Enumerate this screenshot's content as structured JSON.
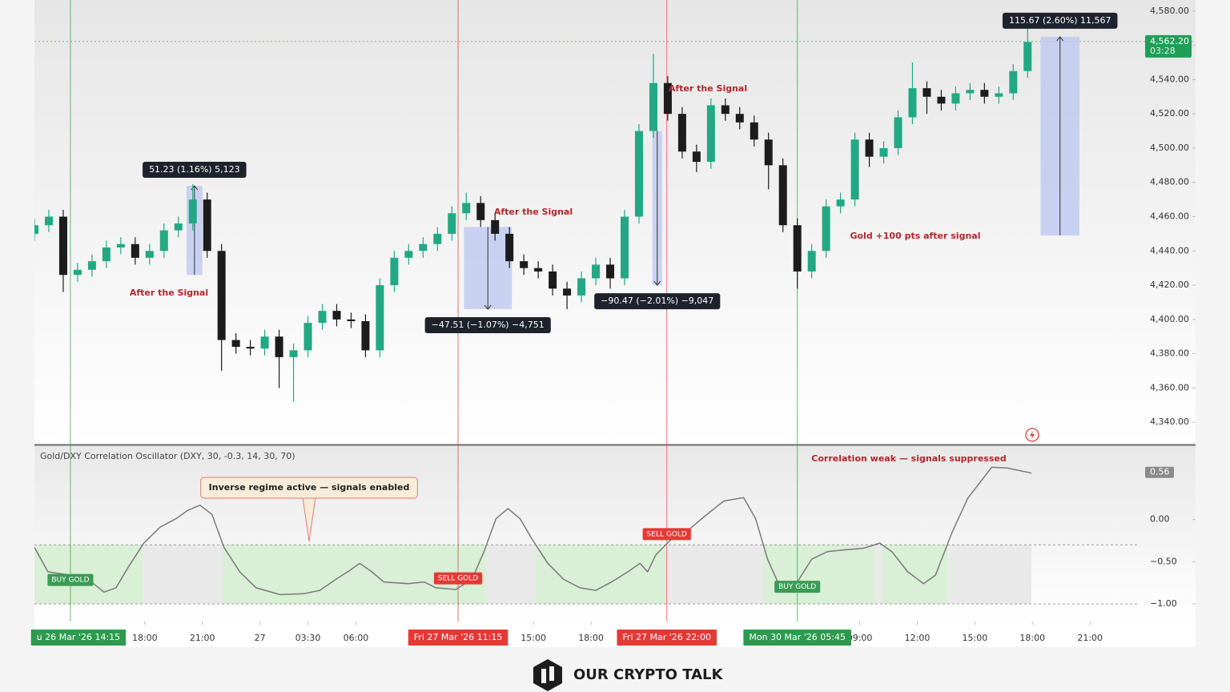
{
  "chart_data": [
    {
      "type": "candlestick",
      "xlim": [
        0,
        242
      ],
      "ylim": [
        4327,
        4586
      ],
      "xticks": [
        {
          "value": 23,
          "label": "18:00"
        },
        {
          "value": 35,
          "label": "21:00"
        },
        {
          "value": 47,
          "label": "27"
        },
        {
          "value": 57,
          "label": "03:30"
        },
        {
          "value": 67,
          "label": "06:00"
        },
        {
          "value": 104,
          "label": "15:00"
        },
        {
          "value": 116,
          "label": "18:00"
        },
        {
          "value": 172,
          "label": "09:00"
        },
        {
          "value": 184,
          "label": "12:00"
        },
        {
          "value": 196,
          "label": "15:00"
        },
        {
          "value": 208,
          "label": "18:00"
        },
        {
          "value": 220,
          "label": "21:00"
        }
      ],
      "yticks": [
        {
          "value": 4580,
          "label": "4,580.00"
        },
        {
          "value": 4560,
          "label": "4,560.00"
        },
        {
          "value": 4540,
          "label": "4,540.00"
        },
        {
          "value": 4520,
          "label": "4,520.00"
        },
        {
          "value": 4500,
          "label": "4,500.00"
        },
        {
          "value": 4480,
          "label": "4,480.00"
        },
        {
          "value": 4460,
          "label": "4,460.00"
        },
        {
          "value": 4440,
          "label": "4,440.00"
        },
        {
          "value": 4420,
          "label": "4,420.00"
        },
        {
          "value": 4400,
          "label": "4,400.00"
        },
        {
          "value": 4380,
          "label": "4,380.00"
        },
        {
          "value": 4360,
          "label": "4,360.00"
        },
        {
          "value": 4340,
          "label": "4,340.00"
        }
      ],
      "up_color": "#22a884",
      "down_color": "#1c1c1c",
      "x": [
        0,
        3,
        6,
        9,
        12,
        15,
        18,
        21,
        24,
        27,
        30,
        33,
        36,
        39,
        42,
        45,
        48,
        51,
        54,
        57,
        60,
        63,
        66,
        69,
        72,
        75,
        78,
        81,
        84,
        87,
        90,
        93,
        96,
        99,
        102,
        105,
        108,
        111,
        114,
        117,
        120,
        123,
        126,
        129,
        132,
        135,
        138,
        141,
        144,
        147,
        150,
        153,
        156,
        159,
        162,
        165,
        168,
        171,
        174,
        177,
        180,
        183,
        186,
        189,
        192,
        195,
        198,
        201,
        204,
        207
      ],
      "open": [
        4450,
        4455,
        4460,
        4426,
        4429,
        4434,
        4442,
        4444,
        4436,
        4440,
        4452,
        4456,
        4470,
        4440,
        4388,
        4384,
        4383,
        4390,
        4378,
        4382,
        4398,
        4405,
        4400,
        4399,
        4382,
        4420,
        4436,
        4440,
        4444,
        4450,
        4462,
        4468,
        4458,
        4450,
        4434,
        4430,
        4428,
        4418,
        4414,
        4424,
        4432,
        4424,
        4460,
        4510,
        4538,
        4520,
        4498,
        4492,
        4525,
        4520,
        4515,
        4505,
        4490,
        4455,
        4428,
        4440,
        4466,
        4470,
        4505,
        4495,
        4500,
        4518,
        4535,
        4530,
        4526,
        4532,
        4534,
        4530,
        4532,
        4545
      ],
      "high": [
        4459,
        4464,
        4464,
        4433,
        4438,
        4446,
        4448,
        4448,
        4444,
        4456,
        4460,
        4479,
        4474,
        4444,
        4392,
        4388,
        4394,
        4394,
        4386,
        4402,
        4409,
        4409,
        4404,
        4403,
        4424,
        4440,
        4444,
        4448,
        4454,
        4466,
        4474,
        4472,
        4462,
        4454,
        4438,
        4434,
        4432,
        4422,
        4428,
        4436,
        4436,
        4464,
        4514,
        4555,
        4542,
        4524,
        4502,
        4529,
        4529,
        4524,
        4519,
        4509,
        4494,
        4459,
        4444,
        4470,
        4474,
        4509,
        4509,
        4504,
        4522,
        4550,
        4539,
        4534,
        4536,
        4538,
        4538,
        4536,
        4549,
        4575
      ],
      "low": [
        4446,
        4451,
        4416,
        4422,
        4425,
        4430,
        4438,
        4432,
        4432,
        4436,
        4448,
        4452,
        4436,
        4370,
        4380,
        4379,
        4379,
        4360,
        4352,
        4378,
        4394,
        4396,
        4395,
        4378,
        4378,
        4416,
        4432,
        4436,
        4440,
        4446,
        4458,
        4454,
        4446,
        4430,
        4426,
        4424,
        4414,
        4406,
        4410,
        4420,
        4418,
        4420,
        4456,
        4506,
        4516,
        4494,
        4486,
        4488,
        4516,
        4511,
        4501,
        4476,
        4451,
        4418,
        4424,
        4436,
        4462,
        4466,
        4489,
        4491,
        4496,
        4514,
        4520,
        4522,
        4522,
        4528,
        4526,
        4526,
        4528,
        4541
      ],
      "close": [
        4455,
        4460,
        4426,
        4429,
        4434,
        4442,
        4444,
        4436,
        4440,
        4452,
        4456,
        4470,
        4440,
        4388,
        4384,
        4383,
        4390,
        4378,
        4382,
        4398,
        4405,
        4400,
        4399,
        4382,
        4420,
        4436,
        4440,
        4444,
        4450,
        4462,
        4468,
        4458,
        4450,
        4434,
        4430,
        4428,
        4418,
        4414,
        4424,
        4432,
        4424,
        4460,
        4510,
        4538,
        4520,
        4498,
        4492,
        4525,
        4520,
        4515,
        4505,
        4490,
        4455,
        4428,
        4440,
        4466,
        4470,
        4505,
        4495,
        4500,
        4518,
        4535,
        4530,
        4526,
        4532,
        4534,
        4530,
        4532,
        4545,
        4562
      ],
      "last_price": {
        "value": 4562.2,
        "label": "4,562.20"
      },
      "countdown": "03:28",
      "measures": [
        {
          "x": [
            31.7,
            35
          ],
          "y": [
            4426,
            4478
          ],
          "label": "51.23 (1.16%) 5,123"
        },
        {
          "x": [
            89.5,
            99.5
          ],
          "y": [
            4454,
            4406
          ],
          "label": "−47.51 (−1.07%) −4,751"
        },
        {
          "x": [
            128.8,
            130.8
          ],
          "y": [
            4510,
            4420
          ],
          "label": "−90.47 (−2.01%) −9,047"
        },
        {
          "x": [
            209.7,
            217.8
          ],
          "y": [
            4449,
            4565
          ],
          "label": "115.67 (2.60%) 11,567"
        }
      ],
      "annotations": [
        "After the Signal",
        "After the Signal",
        "After the Signal",
        "Gold +100 pts after signal"
      ],
      "signals": [
        {
          "x": 7.5,
          "time": "u 26 Mar '26  14:15",
          "label": "BUY GOLD",
          "color": "#2e9a4e"
        },
        {
          "x": 88.3,
          "time": "Fri 27 Mar '26  11:15",
          "label": "SELL GOLD",
          "color": "#e53935"
        },
        {
          "x": 131.8,
          "time": "Fri 27 Mar '26  22:00",
          "label": "SELL GOLD",
          "color": "#e53935"
        },
        {
          "x": 159,
          "time": "Mon 30 Mar '26  05:45",
          "label": "BUY GOLD",
          "color": "#2e9a4e"
        }
      ]
    },
    {
      "type": "line",
      "title": "Gold/DXY Correlation Oscillator (DXY, 30, -0.3, 14, 30, 70)",
      "xlim": [
        0,
        242
      ],
      "ylim": [
        -1.2,
        0.88
      ],
      "yticks": [
        {
          "value": 0,
          "label": "0.00"
        },
        {
          "value": -0.5,
          "label": "−0.50"
        },
        {
          "value": -1,
          "label": "−1.00"
        }
      ],
      "threshold": -0.3,
      "floor": -1,
      "color": "#7a7a7a",
      "last_value": 0.56,
      "x": [
        0,
        2.8,
        7.5,
        11.2,
        14.5,
        17,
        19.5,
        22.8,
        26.2,
        29.5,
        32,
        34.5,
        37,
        39.5,
        42.8,
        46.2,
        51.2,
        56.2,
        59.5,
        62.8,
        65.3,
        67.8,
        70.3,
        72.8,
        77.8,
        81.2,
        83.7,
        87.8,
        91.2,
        93.7,
        96.2,
        98.7,
        101.2,
        103.7,
        107,
        110.3,
        113.7,
        117,
        120.3,
        123.7,
        126.2,
        127.8,
        129.5,
        132.8,
        136.2,
        139.5,
        143.7,
        147.8,
        150.3,
        152.8,
        155.3,
        159,
        162,
        165.3,
        168.7,
        172.8,
        176.2,
        178.7,
        182,
        185.3,
        187.8,
        191.2,
        194.5,
        199.5,
        202.8,
        207.8
      ],
      "values": [
        -0.33,
        -0.62,
        -0.66,
        -0.71,
        -0.86,
        -0.81,
        -0.57,
        -0.28,
        -0.09,
        0.01,
        0.11,
        0.17,
        0.06,
        -0.33,
        -0.62,
        -0.81,
        -0.89,
        -0.88,
        -0.84,
        -0.71,
        -0.62,
        -0.52,
        -0.62,
        -0.74,
        -0.76,
        -0.74,
        -0.81,
        -0.83,
        -0.71,
        -0.38,
        0.01,
        0.13,
        0.01,
        -0.23,
        -0.52,
        -0.71,
        -0.81,
        -0.84,
        -0.74,
        -0.62,
        -0.52,
        -0.62,
        -0.42,
        -0.23,
        -0.13,
        0.03,
        0.22,
        0.26,
        0.01,
        -0.47,
        -0.79,
        -0.74,
        -0.47,
        -0.38,
        -0.36,
        -0.34,
        -0.28,
        -0.38,
        -0.62,
        -0.76,
        -0.66,
        -0.16,
        0.25,
        0.62,
        0.61,
        0.55
      ],
      "annotations": [
        "Inverse regime active — signals enabled",
        "Correlation weak — signals suppressed"
      ]
    }
  ],
  "brand": "OUR CRYPTO TALK"
}
